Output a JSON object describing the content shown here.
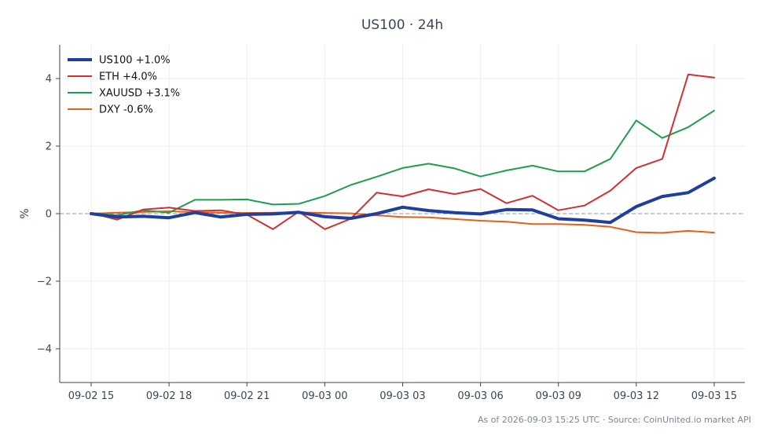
{
  "chart_data": {
    "type": "line",
    "title": "US100 · 24h",
    "xlabel": "",
    "ylabel": "%",
    "x_tick_labels": [
      "09-02 15",
      "09-02 18",
      "09-02 21",
      "09-03 00",
      "09-03 03",
      "09-03 06",
      "09-03 09",
      "09-03 12",
      "09-03 15"
    ],
    "y_ticks": [
      -4,
      -2,
      0,
      2,
      4
    ],
    "y_tick_labels": [
      "−4",
      "−2",
      "0",
      "2",
      "4"
    ],
    "ylim": [
      -5,
      5
    ],
    "x_hours": [
      0,
      1,
      2,
      3,
      4,
      5,
      6,
      7,
      8,
      9,
      10,
      11,
      12,
      13,
      14,
      15,
      16,
      17,
      18,
      19,
      20,
      21,
      22,
      23,
      24
    ],
    "zero_line": true,
    "grid": true,
    "legend_position": "top-left",
    "series": [
      {
        "name": "US100 +1.0%",
        "color": "#1f3fa0",
        "width": 4,
        "values": [
          0.0,
          -0.1,
          -0.08,
          -0.12,
          0.03,
          -0.1,
          -0.02,
          -0.01,
          0.04,
          -0.09,
          -0.14,
          0.0,
          0.19,
          0.09,
          0.03,
          -0.01,
          0.12,
          0.11,
          -0.15,
          -0.19,
          -0.26,
          0.21,
          0.51,
          0.62,
          1.05
        ]
      },
      {
        "name": "ETH +4.0%",
        "color": "#d1302f",
        "width": 2,
        "values": [
          0.02,
          -0.18,
          0.12,
          0.18,
          0.08,
          0.1,
          -0.03,
          -0.46,
          0.06,
          -0.46,
          -0.15,
          0.62,
          0.51,
          0.72,
          0.58,
          0.73,
          0.31,
          0.53,
          0.1,
          0.24,
          0.68,
          1.35,
          1.62,
          4.12,
          4.03
        ]
      },
      {
        "name": "XAUUSD +3.1%",
        "color": "#1e9e4f",
        "width": 2,
        "values": [
          0.01,
          -0.05,
          0.1,
          0.03,
          0.41,
          0.41,
          0.42,
          0.27,
          0.29,
          0.52,
          0.85,
          1.09,
          1.35,
          1.48,
          1.34,
          1.1,
          1.28,
          1.42,
          1.25,
          1.25,
          1.62,
          2.76,
          2.24,
          2.56,
          3.05
        ]
      },
      {
        "name": "DXY -0.6%",
        "color": "#e2611b",
        "width": 2,
        "values": [
          0.0,
          0.03,
          0.05,
          0.07,
          0.04,
          0.03,
          0.02,
          0.03,
          0.04,
          0.02,
          0.01,
          -0.05,
          -0.1,
          -0.11,
          -0.16,
          -0.21,
          -0.24,
          -0.31,
          -0.31,
          -0.33,
          -0.39,
          -0.55,
          -0.57,
          -0.51,
          -0.56
        ]
      }
    ]
  },
  "footer": "As of 2026-09-03 15:25 UTC · Source: CoinUnited.io market API"
}
